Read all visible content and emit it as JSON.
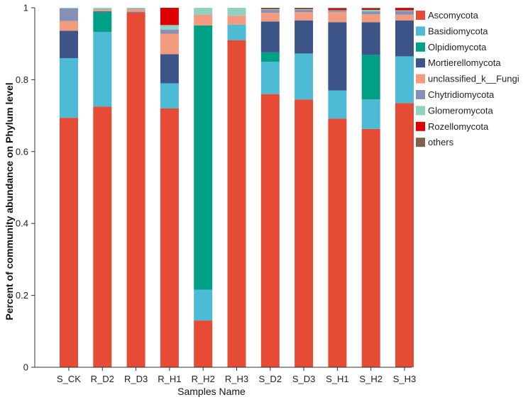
{
  "chart_data": {
    "type": "bar",
    "stacked": true,
    "xlabel": "Samples Name",
    "ylabel": "Percent of community abundance on Phylum level",
    "ylim": [
      0,
      1
    ],
    "yticks": [
      0,
      0.2,
      0.4,
      0.6,
      0.8,
      1
    ],
    "ytick_labels": [
      "0",
      "0.2",
      "0.4",
      "0.6",
      "0.8",
      "1"
    ],
    "categories": [
      "S_CK",
      "R_D2",
      "R_D3",
      "R_H1",
      "R_H2",
      "R_H3",
      "S_D2",
      "S_D3",
      "S_H1",
      "S_H2",
      "S_H3"
    ],
    "legend_position": "right",
    "series": [
      {
        "name": "Ascomycota",
        "color": "#E64B35",
        "values": [
          0.694,
          0.725,
          0.988,
          0.72,
          0.13,
          0.91,
          0.76,
          0.745,
          0.692,
          0.663,
          0.735
        ]
      },
      {
        "name": "Basidiomycota",
        "color": "#4DBBD5",
        "values": [
          0.166,
          0.208,
          0.002,
          0.07,
          0.086,
          0.043,
          0.09,
          0.128,
          0.078,
          0.082,
          0.13
        ]
      },
      {
        "name": "Olpidiomycota",
        "color": "#00A087",
        "values": [
          0,
          0.055,
          0,
          0,
          0.735,
          0,
          0.026,
          0,
          0,
          0.124,
          0
        ]
      },
      {
        "name": "Mortierellomycota",
        "color": "#3C5488",
        "values": [
          0.076,
          0.002,
          0,
          0.081,
          0,
          0,
          0.086,
          0.092,
          0.19,
          0.091,
          0.1
        ]
      },
      {
        "name": "unclassified_k__Fungi",
        "color": "#F39B7F",
        "values": [
          0.027,
          0.004,
          0.006,
          0.057,
          0.03,
          0.025,
          0.024,
          0.023,
          0.028,
          0.022,
          0.016
        ]
      },
      {
        "name": "Chytridiomycota",
        "color": "#8491B4",
        "values": [
          0.035,
          0.001,
          0.001,
          0.011,
          0,
          0,
          0.008,
          0.006,
          0.003,
          0.008,
          0.01
        ]
      },
      {
        "name": "Glomeromycota",
        "color": "#91D1C2",
        "values": [
          0.002,
          0.005,
          0.003,
          0.013,
          0.019,
          0.022,
          0.002,
          0.002,
          0.002,
          0.004,
          0.002
        ]
      },
      {
        "name": "Rozellomycota",
        "color": "#DC0000",
        "values": [
          0,
          0,
          0,
          0.048,
          0,
          0,
          0.001,
          0.001,
          0.004,
          0.003,
          0.006
        ]
      },
      {
        "name": "others",
        "color": "#7E6148",
        "values": [
          0,
          0,
          0,
          0,
          0,
          0,
          0.003,
          0.003,
          0.003,
          0.003,
          0.001
        ]
      }
    ]
  }
}
